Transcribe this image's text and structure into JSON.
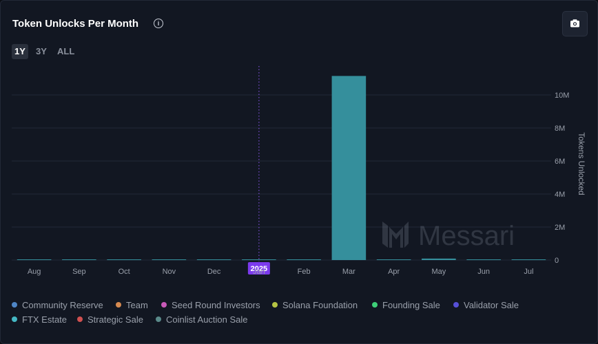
{
  "title": "Token Unlocks Per Month",
  "ranges": [
    "1Y",
    "3Y",
    "ALL"
  ],
  "active_range": "1Y",
  "watermark": "Messari",
  "marker_label": "2025",
  "chart_data": {
    "type": "bar",
    "title": "Token Unlocks Per Month",
    "ylabel": "Tokens Unlocked",
    "xlabel": "",
    "ylim": [
      0,
      12000000
    ],
    "y_ticks": [
      0,
      2000000,
      4000000,
      6000000,
      8000000,
      10000000
    ],
    "y_tick_labels": [
      "0",
      "2M",
      "4M",
      "6M",
      "8M",
      "10M"
    ],
    "categories": [
      "Aug",
      "Sep",
      "Oct",
      "Nov",
      "Dec",
      "Jan",
      "Feb",
      "Mar",
      "Apr",
      "May",
      "Jun",
      "Jul"
    ],
    "values": [
      20000,
      20000,
      20000,
      20000,
      20000,
      20000,
      20000,
      11150000,
      30000,
      90000,
      20000,
      20000
    ],
    "grid": true,
    "legend_position": "bottom",
    "legend": [
      {
        "name": "Community Reserve",
        "color": "#4f86c6"
      },
      {
        "name": "Team",
        "color": "#d68a50"
      },
      {
        "name": "Seed Round Investors",
        "color": "#c85ab8"
      },
      {
        "name": "Solana Foundation",
        "color": "#b5c444"
      },
      {
        "name": "Founding Sale",
        "color": "#3ecf78"
      },
      {
        "name": "Validator Sale",
        "color": "#5750d8"
      },
      {
        "name": "FTX Estate",
        "color": "#45b8c4"
      },
      {
        "name": "Strategic Sale",
        "color": "#d05050"
      },
      {
        "name": "Coinlist Auction Sale",
        "color": "#5a8a8a"
      }
    ],
    "bar_color": "#358f9c"
  }
}
